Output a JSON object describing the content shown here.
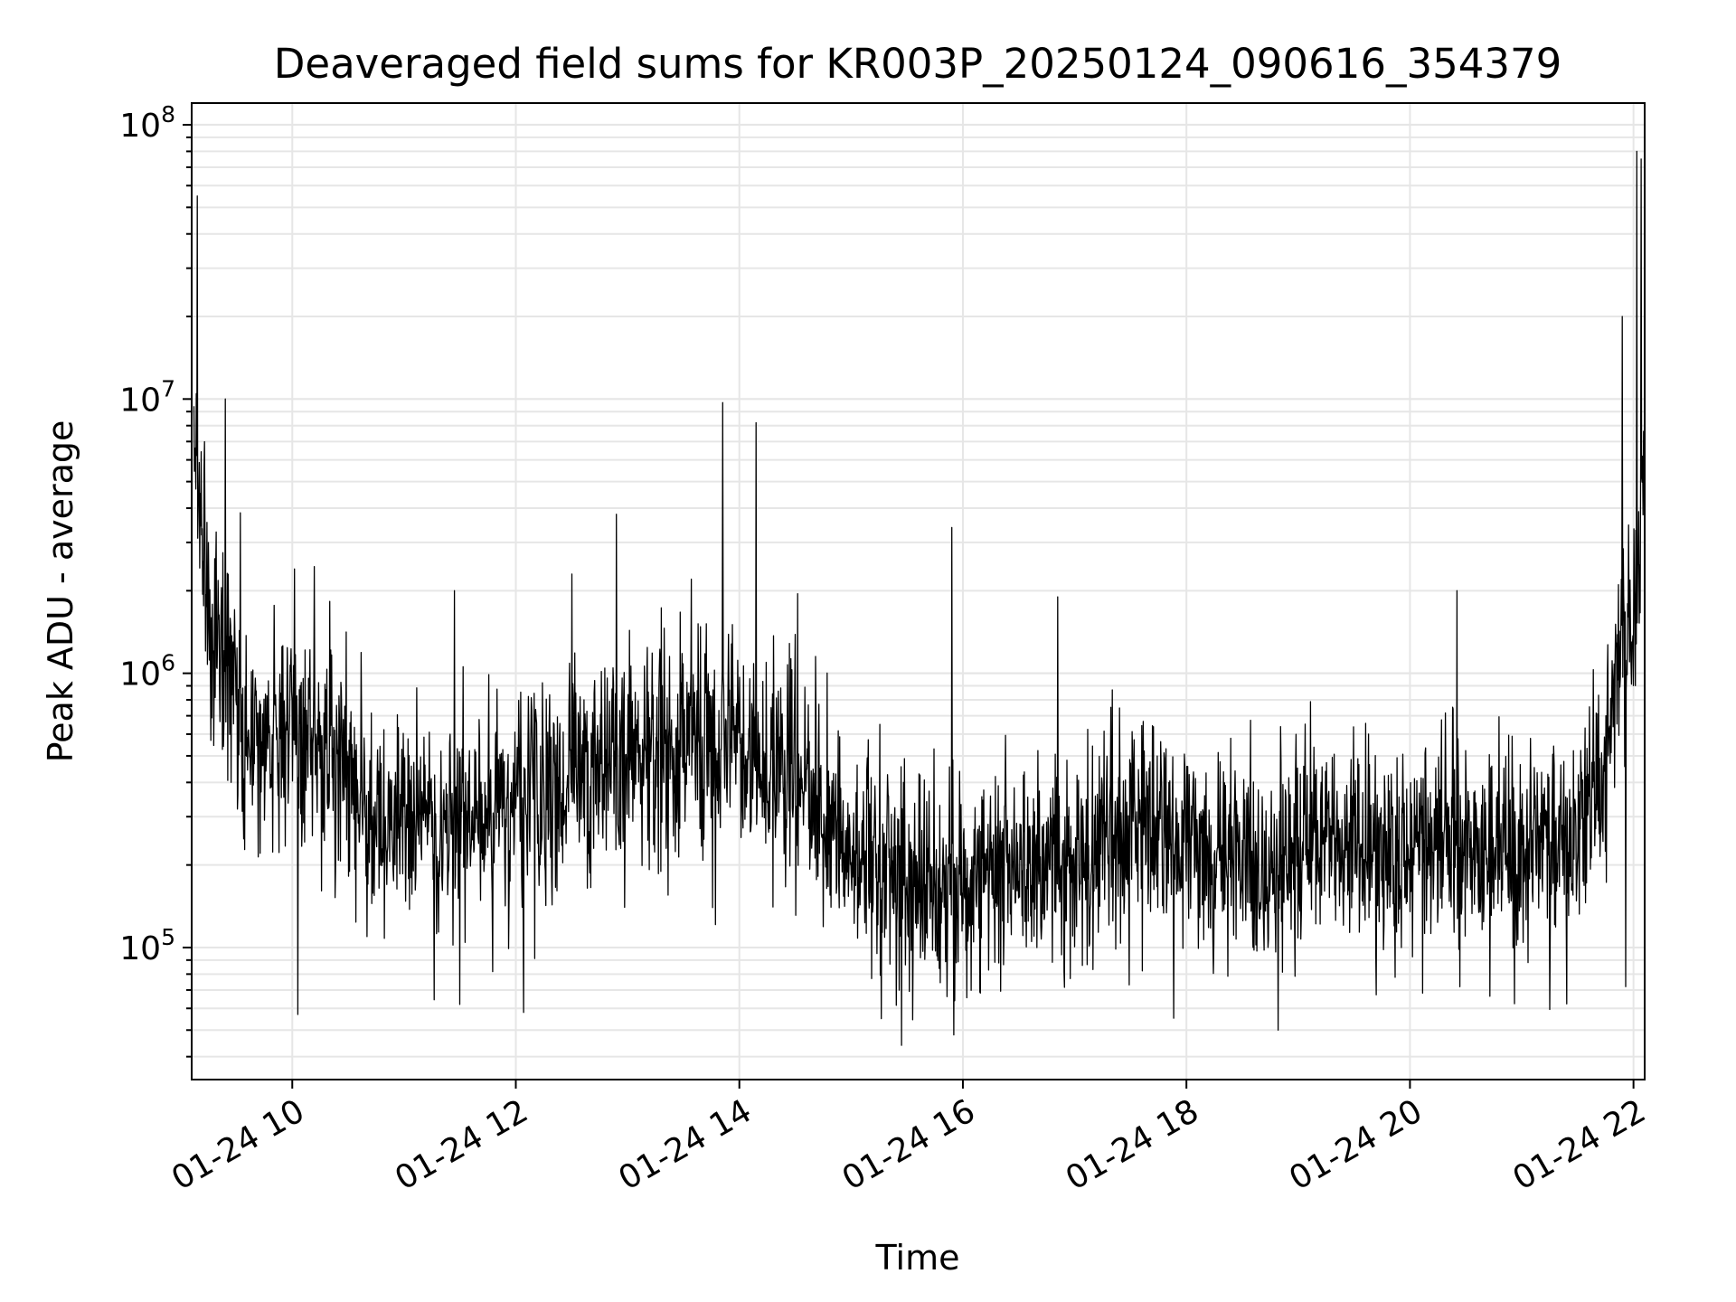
{
  "chart_data": {
    "type": "line",
    "title": "Deaveraged field sums for KR003P_20250124_090616_354379",
    "xlabel": "Time",
    "ylabel": "Peak ADU - average",
    "x_tick_labels": [
      "01-24 10",
      "01-24 12",
      "01-24 14",
      "01-24 16",
      "01-24 18",
      "01-24 20",
      "01-24 22"
    ],
    "x_ticks_hours": [
      10,
      12,
      14,
      16,
      18,
      20,
      22
    ],
    "xlim_hours": [
      9.1,
      22.1
    ],
    "x_units": "hour of 2025-01-24",
    "y_scale": "log",
    "ylim": [
      33000,
      120000000
    ],
    "y_ticks": [
      {
        "base": "10",
        "exp": "5",
        "value": 100000
      },
      {
        "base": "10",
        "exp": "6",
        "value": 1000000
      },
      {
        "base": "10",
        "exp": "7",
        "value": 10000000
      },
      {
        "base": "10",
        "exp": "8",
        "value": 100000000
      }
    ],
    "grid": true,
    "line_color": "#000000",
    "grid_color": "#e6e6e6",
    "baseline": [
      {
        "x": 9.12,
        "y": 8500000
      },
      {
        "x": 9.25,
        "y": 1500000
      },
      {
        "x": 9.5,
        "y": 700000
      },
      {
        "x": 9.75,
        "y": 500000
      },
      {
        "x": 10.0,
        "y": 700000
      },
      {
        "x": 10.5,
        "y": 400000
      },
      {
        "x": 11.0,
        "y": 280000
      },
      {
        "x": 11.5,
        "y": 270000
      },
      {
        "x": 12.0,
        "y": 320000
      },
      {
        "x": 12.5,
        "y": 430000
      },
      {
        "x": 13.0,
        "y": 480000
      },
      {
        "x": 13.5,
        "y": 580000
      },
      {
        "x": 14.0,
        "y": 550000
      },
      {
        "x": 14.5,
        "y": 400000
      },
      {
        "x": 15.0,
        "y": 240000
      },
      {
        "x": 15.5,
        "y": 160000
      },
      {
        "x": 16.0,
        "y": 160000
      },
      {
        "x": 16.5,
        "y": 200000
      },
      {
        "x": 17.0,
        "y": 210000
      },
      {
        "x": 17.5,
        "y": 280000
      },
      {
        "x": 18.0,
        "y": 230000
      },
      {
        "x": 18.5,
        "y": 210000
      },
      {
        "x": 19.0,
        "y": 240000
      },
      {
        "x": 19.5,
        "y": 250000
      },
      {
        "x": 20.0,
        "y": 240000
      },
      {
        "x": 20.5,
        "y": 230000
      },
      {
        "x": 21.0,
        "y": 220000
      },
      {
        "x": 21.5,
        "y": 260000
      },
      {
        "x": 21.75,
        "y": 450000
      },
      {
        "x": 21.9,
        "y": 1300000
      },
      {
        "x": 22.0,
        "y": 1400000
      },
      {
        "x": 22.08,
        "y": 5000000
      }
    ],
    "spikes": [
      {
        "x": 9.15,
        "y": 55000000
      },
      {
        "x": 9.4,
        "y": 10000000
      },
      {
        "x": 10.02,
        "y": 2400000
      },
      {
        "x": 10.05,
        "y": 57000
      },
      {
        "x": 11.45,
        "y": 2000000
      },
      {
        "x": 11.5,
        "y": 62000
      },
      {
        "x": 12.07,
        "y": 58000
      },
      {
        "x": 12.5,
        "y": 2300000
      },
      {
        "x": 12.9,
        "y": 3800000
      },
      {
        "x": 13.85,
        "y": 9700000
      },
      {
        "x": 14.15,
        "y": 8200000
      },
      {
        "x": 15.45,
        "y": 44000
      },
      {
        "x": 15.9,
        "y": 3400000
      },
      {
        "x": 15.92,
        "y": 48000
      },
      {
        "x": 16.85,
        "y": 1900000
      },
      {
        "x": 20.42,
        "y": 2000000
      },
      {
        "x": 21.9,
        "y": 20000000
      },
      {
        "x": 21.93,
        "y": 72000
      },
      {
        "x": 22.03,
        "y": 80000000
      },
      {
        "x": 22.07,
        "y": 75000000
      }
    ]
  }
}
